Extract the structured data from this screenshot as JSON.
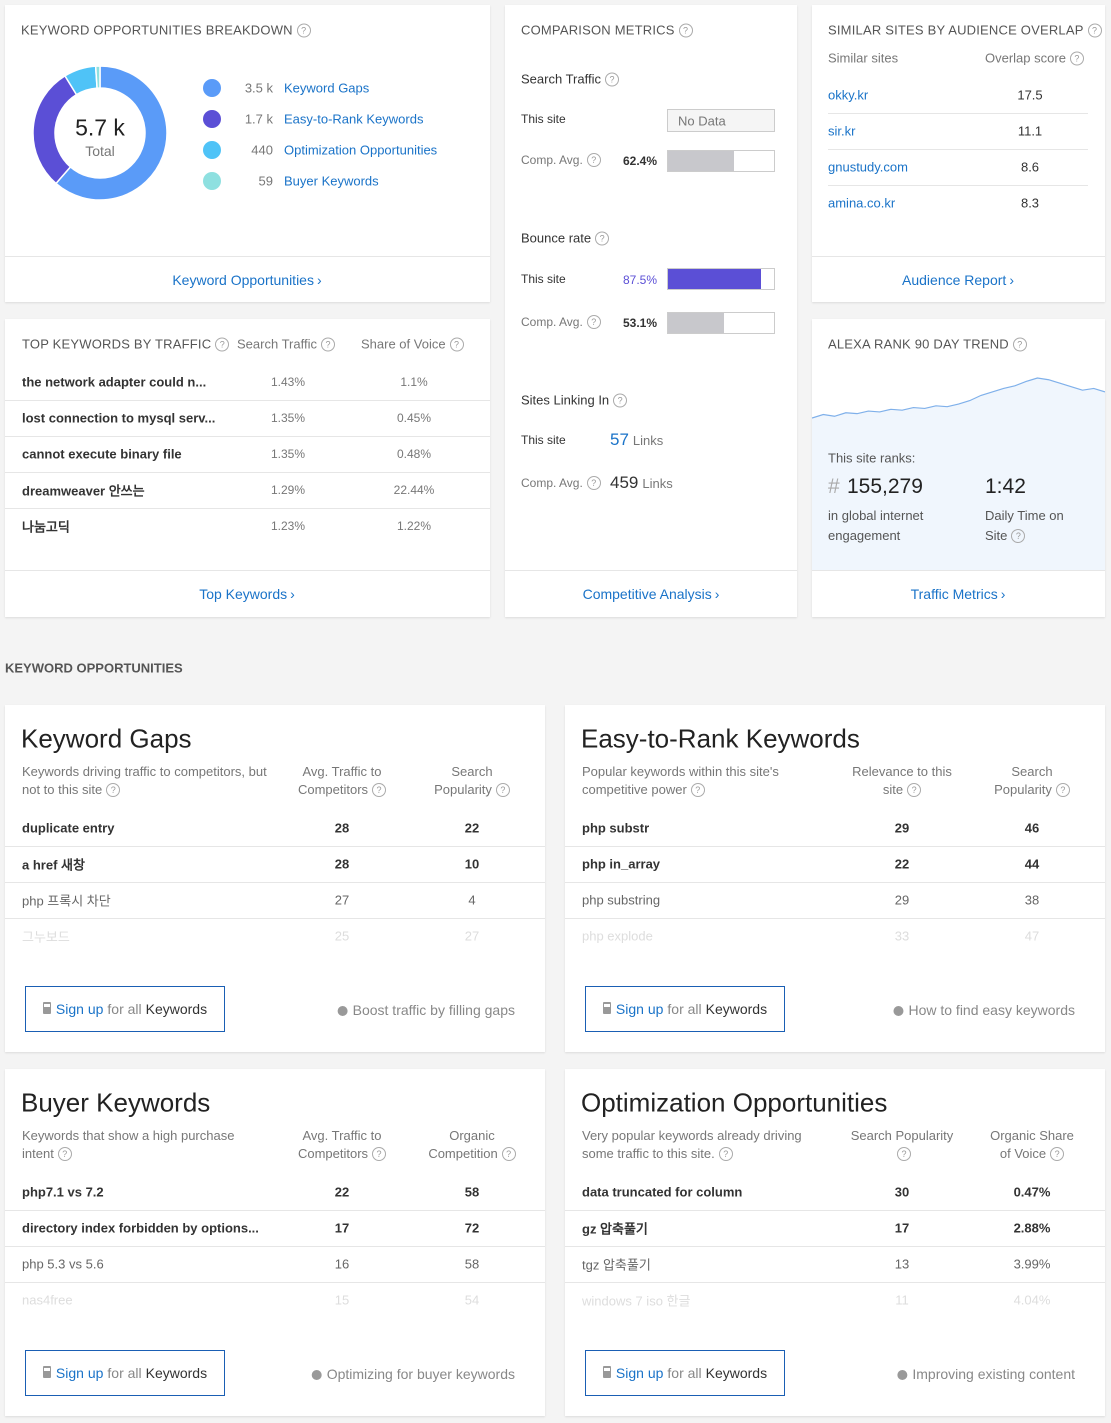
{
  "keyword_breakdown": {
    "title": "KEYWORD OPPORTUNITIES BREAKDOWN",
    "total": "5.7 k",
    "total_label": "Total",
    "segments": [
      {
        "name": "Keyword Gaps",
        "value": 3500,
        "label": "3.5 k",
        "color": "#5a9bf8"
      },
      {
        "name": "Easy-to-Rank Keywords",
        "value": 1700,
        "label": "1.7 k",
        "color": "#5b4fd6"
      },
      {
        "name": "Optimization Opportunities",
        "value": 440,
        "label": "440",
        "color": "#4fc3f7"
      },
      {
        "name": "Buyer Keywords",
        "value": 59,
        "label": "59",
        "color": "#8ee0e0"
      }
    ],
    "link": "Keyword Opportunities"
  },
  "comparison": {
    "title": "COMPARISON METRICS",
    "search_traffic": {
      "label": "Search Traffic",
      "this_site_label": "This site",
      "this_site": "No Data",
      "comp_label": "Comp. Avg.",
      "comp": {
        "value": 62.4,
        "label": "62.4%"
      }
    },
    "bounce_rate": {
      "label": "Bounce rate",
      "this_site_label": "This site",
      "this_site": {
        "value": 87.5,
        "label": "87.5%"
      },
      "comp_label": "Comp. Avg.",
      "comp": {
        "value": 53.1,
        "label": "53.1%"
      }
    },
    "sites_linking_in": {
      "label": "Sites Linking In",
      "this_site_label": "This site",
      "this_site": 57,
      "comp_label": "Comp. Avg.",
      "comp": 459,
      "unit": "Links"
    },
    "link": "Competitive Analysis"
  },
  "similar_sites": {
    "title": "SIMILAR SITES BY AUDIENCE OVERLAP",
    "columns": [
      "Similar sites",
      "Overlap score"
    ],
    "rows": [
      [
        "okky.kr",
        17.5
      ],
      [
        "sir.kr",
        11.1
      ],
      [
        "gnustudy.com",
        8.6
      ],
      [
        "amina.co.kr",
        8.3
      ]
    ],
    "link": "Audience Report"
  },
  "top_keywords": {
    "title": "TOP KEYWORDS BY TRAFFIC",
    "columns": [
      "Search Traffic",
      "Share of Voice"
    ],
    "rows": [
      [
        "the network adapter could n...",
        "1.43%",
        "1.1%"
      ],
      [
        "lost connection to mysql serv...",
        "1.35%",
        "0.45%"
      ],
      [
        "cannot execute binary file",
        "1.35%",
        "0.48%"
      ],
      [
        "dreamweaver 안쓰는",
        "1.29%",
        "22.44%"
      ],
      [
        "나눔고딕",
        "1.23%",
        "1.22%"
      ]
    ],
    "link": "Top Keywords"
  },
  "alexa": {
    "title": "ALEXA RANK 90 DAY TREND",
    "trend": [
      8,
      12,
      10,
      14,
      13,
      16,
      15,
      18,
      17,
      20,
      19,
      22,
      21,
      24,
      28,
      34,
      38,
      42,
      45,
      50,
      54,
      52,
      48,
      44,
      40,
      42,
      38
    ],
    "ranks_label": "This site ranks:",
    "hash": "#",
    "rank": "155,279",
    "rank_caption": "in global internet engagement",
    "time": "1:42",
    "time_caption": "Daily Time on Site",
    "link": "Traffic Metrics"
  },
  "section_title": "KEYWORD OPPORTUNITIES",
  "signup_button": {
    "action": "Sign up",
    "middle": "for all",
    "object": "Keywords"
  },
  "opportunities": [
    {
      "title": "Keyword Gaps",
      "description": "Keywords driving traffic to competitors, but not to this site",
      "columns": [
        "Avg. Traffic to Competitors",
        "Search Popularity"
      ],
      "rows": [
        [
          "duplicate entry",
          28,
          22
        ],
        [
          "a href 새창",
          28,
          10
        ],
        [
          "php 프록시 차단",
          27,
          4
        ],
        [
          "그누보드",
          25,
          27
        ]
      ],
      "tip": "Boost traffic by filling gaps"
    },
    {
      "title": "Easy-to-Rank Keywords",
      "description": "Popular keywords within this site's competitive power",
      "columns": [
        "Relevance to this site",
        "Search Popularity"
      ],
      "rows": [
        [
          "php substr",
          29,
          46
        ],
        [
          "php in_array",
          22,
          44
        ],
        [
          "php substring",
          29,
          38
        ],
        [
          "php explode",
          33,
          47
        ]
      ],
      "tip": "How to find easy keywords"
    },
    {
      "title": "Buyer Keywords",
      "description": "Keywords that show a high purchase intent",
      "columns": [
        "Avg. Traffic to Competitors",
        "Organic Competition"
      ],
      "rows": [
        [
          "php7.1 vs 7.2",
          22,
          58
        ],
        [
          "directory index forbidden by options...",
          17,
          72
        ],
        [
          "php 5.3 vs 5.6",
          16,
          58
        ],
        [
          "nas4free",
          15,
          54
        ]
      ],
      "tip": "Optimizing for buyer keywords"
    },
    {
      "title": "Optimization Opportunities",
      "description": "Very popular keywords already driving some traffic to this site.",
      "columns": [
        "Search Popularity",
        "Organic Share of Voice"
      ],
      "rows": [
        [
          "data truncated for column",
          30,
          "0.47%"
        ],
        [
          "gz 압축풀기",
          17,
          "2.88%"
        ],
        [
          "tgz 압축풀기",
          13,
          "3.99%"
        ],
        [
          "windows 7 iso 한글",
          11,
          "4.04%"
        ]
      ],
      "tip": "Improving existing content"
    }
  ]
}
